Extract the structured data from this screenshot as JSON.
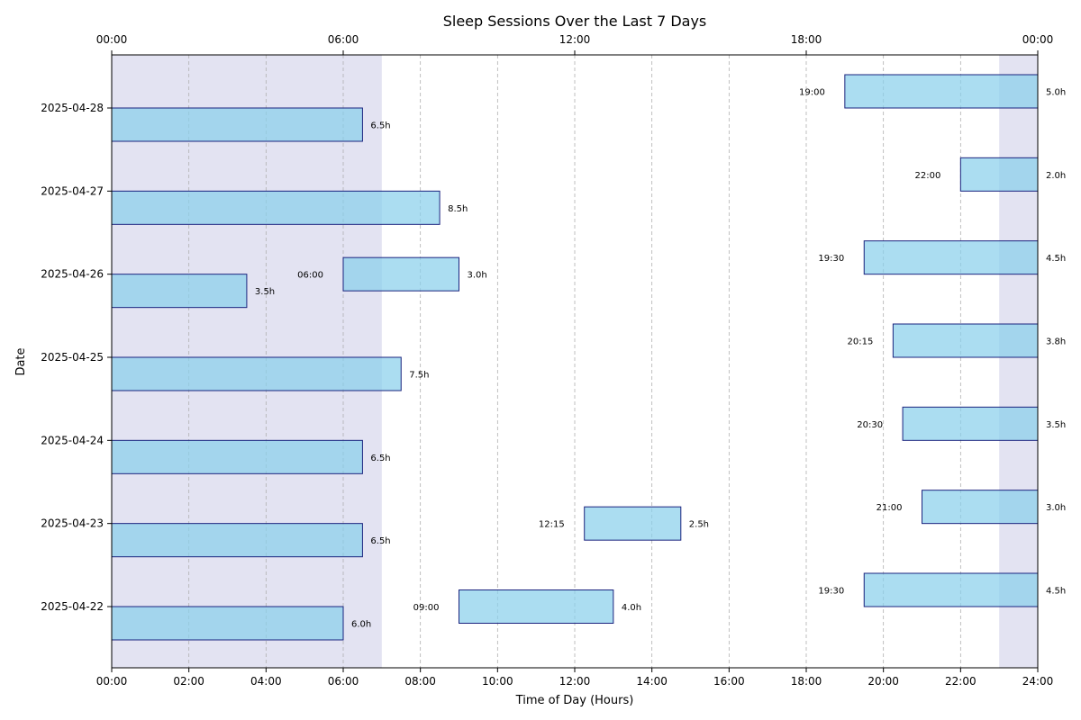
{
  "chart_data": {
    "type": "bar",
    "orientation": "horizontal",
    "title": "Sleep Sessions Over the Last 7 Days",
    "xlabel": "Time of Day (Hours)",
    "ylabel": "Date",
    "xlim": [
      0,
      24
    ],
    "x_ticks": [
      0,
      2,
      4,
      6,
      8,
      10,
      12,
      14,
      16,
      18,
      20,
      22,
      24
    ],
    "x_tick_labels": [
      "00:00",
      "02:00",
      "04:00",
      "06:00",
      "08:00",
      "10:00",
      "12:00",
      "14:00",
      "16:00",
      "18:00",
      "20:00",
      "22:00",
      "24:00"
    ],
    "top_ticks": [
      0,
      6,
      12,
      18,
      24
    ],
    "top_tick_labels": [
      "00:00",
      "06:00",
      "12:00",
      "18:00",
      "00:00"
    ],
    "grid": "vertical dashed",
    "dates": [
      "2025-04-22",
      "2025-04-23",
      "2025-04-24",
      "2025-04-25",
      "2025-04-26",
      "2025-04-27",
      "2025-04-28"
    ],
    "shaded_ranges": [
      {
        "start": 0,
        "end": 7
      },
      {
        "start": 23,
        "end": 24
      }
    ],
    "sessions": [
      {
        "date": "2025-04-22",
        "start": 0,
        "end": 6.0,
        "duration_label": "6.0h",
        "start_label": ""
      },
      {
        "date": "2025-04-22",
        "start": 9.0,
        "end": 13.0,
        "duration_label": "4.0h",
        "start_label": "09:00"
      },
      {
        "date": "2025-04-22",
        "start": 19.5,
        "end": 24,
        "duration_label": "4.5h",
        "start_label": "19:30"
      },
      {
        "date": "2025-04-23",
        "start": 0,
        "end": 6.5,
        "duration_label": "6.5h",
        "start_label": ""
      },
      {
        "date": "2025-04-23",
        "start": 12.25,
        "end": 14.75,
        "duration_label": "2.5h",
        "start_label": "12:15"
      },
      {
        "date": "2025-04-23",
        "start": 21.0,
        "end": 24,
        "duration_label": "3.0h",
        "start_label": "21:00"
      },
      {
        "date": "2025-04-24",
        "start": 0,
        "end": 6.5,
        "duration_label": "6.5h",
        "start_label": ""
      },
      {
        "date": "2025-04-24",
        "start": 20.5,
        "end": 24,
        "duration_label": "3.5h",
        "start_label": "20:30"
      },
      {
        "date": "2025-04-25",
        "start": 0,
        "end": 7.5,
        "duration_label": "7.5h",
        "start_label": ""
      },
      {
        "date": "2025-04-25",
        "start": 20.25,
        "end": 24,
        "duration_label": "3.8h",
        "start_label": "20:15"
      },
      {
        "date": "2025-04-26",
        "start": 0,
        "end": 3.5,
        "duration_label": "3.5h",
        "start_label": ""
      },
      {
        "date": "2025-04-26",
        "start": 6.0,
        "end": 9.0,
        "duration_label": "3.0h",
        "start_label": "06:00"
      },
      {
        "date": "2025-04-26",
        "start": 19.5,
        "end": 24,
        "duration_label": "4.5h",
        "start_label": "19:30"
      },
      {
        "date": "2025-04-27",
        "start": 0,
        "end": 8.5,
        "duration_label": "8.5h",
        "start_label": ""
      },
      {
        "date": "2025-04-27",
        "start": 22.0,
        "end": 24,
        "duration_label": "2.0h",
        "start_label": "22:00"
      },
      {
        "date": "2025-04-28",
        "start": 0,
        "end": 6.5,
        "duration_label": "6.5h",
        "start_label": ""
      },
      {
        "date": "2025-04-28",
        "start": 19.0,
        "end": 24,
        "duration_label": "5.0h",
        "start_label": "19:00"
      }
    ],
    "colors": {
      "bar_fill": "#87ceeb",
      "bar_stroke": "#1a237e",
      "shade": "#c8c8e6"
    }
  }
}
